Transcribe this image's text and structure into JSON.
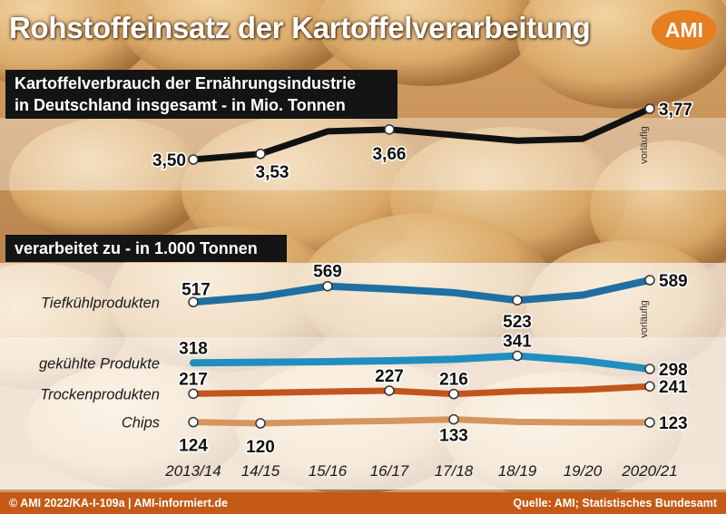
{
  "title": "Rohstoffeinsatz der Kartoffelverarbeitung",
  "logo": "AMI",
  "panel_top": {
    "heading_line1": "Kartoffelverbrauch der Ernährungsindustrie",
    "heading_line2": "in Deutschland insgesamt - in Mio. Tonnen"
  },
  "panel_bottom": {
    "heading": "verarbeitet zu - in 1.000 Tonnen"
  },
  "footer": {
    "left": "© AMI 2022/KA-I-109a | AMI-informiert.de",
    "right": "Quelle: AMI; Statistisches Bundesamt"
  },
  "preliminary_note": "vorläufig",
  "colors": {
    "total": "#111111",
    "tiefkuehl": "#1f6fa3",
    "gekuehlt": "#1e8fbf",
    "trocken": "#c0561c",
    "chips": "#d6955f",
    "background_base": "#e3b472",
    "footer": "#c45a15",
    "logo": "#e67e22"
  },
  "chart_data": [
    {
      "type": "line",
      "title": "Kartoffelverbrauch der Ernährungsindustrie in Deutschland insgesamt - in Mio. Tonnen",
      "categories": [
        "2013/14",
        "14/15",
        "15/16",
        "16/17",
        "17/18",
        "18/19",
        "19/20",
        "2020/21"
      ],
      "series": [
        {
          "values": [
            3.5,
            3.53,
            3.65,
            3.66,
            3.63,
            3.6,
            3.61,
            3.77
          ],
          "data_labels": {
            "0": "3,50",
            "1": "3,53",
            "3": "3,66",
            "7": "3,77"
          }
        }
      ],
      "ylim": [
        3.4,
        3.85
      ]
    },
    {
      "type": "line",
      "title": "verarbeitet zu - in 1.000 Tonnen",
      "categories": [
        "2013/14",
        "14/15",
        "15/16",
        "16/17",
        "17/18",
        "18/19",
        "19/20",
        "2020/21"
      ],
      "series": [
        {
          "name": "Tiefkühlprodukten",
          "values": [
            517,
            535,
            569,
            560,
            548,
            523,
            540,
            589
          ],
          "data_labels": {
            "0": "517",
            "2": "569",
            "5": "523",
            "7": "589"
          }
        },
        {
          "name": "gekühlte Produkte",
          "values": [
            318,
            320,
            322,
            325,
            330,
            341,
            325,
            298
          ],
          "data_labels": {
            "0": "318",
            "5": "341",
            "7": "298"
          }
        },
        {
          "name": "Trockenprodukten",
          "values": [
            217,
            220,
            224,
            227,
            216,
            225,
            230,
            241
          ],
          "data_labels": {
            "0": "217",
            "3": "227",
            "4": "216",
            "7": "241"
          }
        },
        {
          "name": "Chips",
          "values": [
            124,
            120,
            125,
            128,
            133,
            125,
            123,
            123
          ],
          "data_labels": {
            "0": "124",
            "1": "120",
            "4": "133",
            "7": "123"
          }
        }
      ]
    }
  ]
}
